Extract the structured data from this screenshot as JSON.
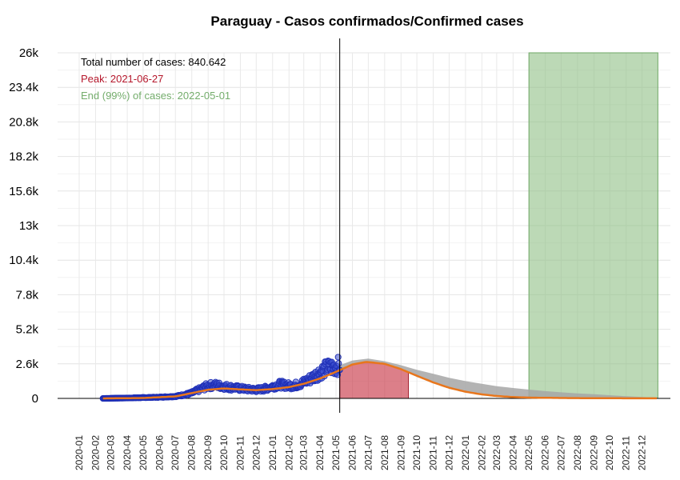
{
  "chart_data": {
    "type": "line",
    "title": "Paraguay - Casos confirmados/Confirmed cases",
    "xlabel": "",
    "ylabel": "",
    "ylim": [
      0,
      26000
    ],
    "y_ticks": [
      0,
      2600,
      5200,
      7800,
      10400,
      13000,
      15600,
      18200,
      20800,
      23400,
      26000
    ],
    "y_tick_labels": [
      "0",
      "2.6k",
      "5.2k",
      "7.8k",
      "10.4k",
      "13k",
      "15.6k",
      "18.2k",
      "20.8k",
      "23.4k",
      "26k"
    ],
    "x_tick_labels": [
      "2020-01",
      "2020-02",
      "2020-03",
      "2020-04",
      "2020-05",
      "2020-06",
      "2020-07",
      "2020-08",
      "2020-09",
      "2020-10",
      "2020-11",
      "2020-12",
      "2021-01",
      "2021-02",
      "2021-03",
      "2021-04",
      "2021-05",
      "2021-06",
      "2021-07",
      "2021-08",
      "2021-09",
      "2021-10",
      "2021-11",
      "2021-12",
      "2022-01",
      "2022-02",
      "2022-03",
      "2022-04",
      "2022-05",
      "2022-06",
      "2022-07",
      "2022-08",
      "2022-09",
      "2022-10",
      "2022-11",
      "2022-12"
    ],
    "grid": true,
    "annotations": {
      "total": "Total number of cases: 840.642",
      "peak": "Peak: 2021-06-27",
      "end": "End (99%) of cases: 2022-05-01"
    },
    "colors": {
      "observed": "#1f2fb5",
      "fit": "#e8761c",
      "peak_area": "#c93a4a",
      "band": "#a6a6a6",
      "end_area": "#8fbf86",
      "peak_text": "#b5172b",
      "end_text": "#74ad6c"
    },
    "current_date_line": "2021-05-08",
    "observed_cases": {
      "x": [
        "2020-02-15",
        "2020-03-01",
        "2020-04-01",
        "2020-05-01",
        "2020-06-01",
        "2020-07-01",
        "2020-07-15",
        "2020-08-01",
        "2020-08-15",
        "2020-09-01",
        "2020-09-15",
        "2020-10-01",
        "2020-10-15",
        "2020-11-01",
        "2020-11-15",
        "2020-12-01",
        "2020-12-15",
        "2021-01-01",
        "2021-01-15",
        "2021-02-01",
        "2021-02-15",
        "2021-03-01",
        "2021-03-15",
        "2021-04-01",
        "2021-04-15",
        "2021-05-01",
        "2021-05-08"
      ],
      "y": [
        0,
        10,
        30,
        60,
        90,
        150,
        250,
        400,
        650,
        950,
        1000,
        900,
        820,
        750,
        680,
        650,
        700,
        900,
        1050,
        950,
        1000,
        1200,
        1500,
        2000,
        2300,
        2400,
        2500
      ]
    },
    "fitted_curve": {
      "x": [
        "2020-02-15",
        "2020-05-01",
        "2020-07-01",
        "2020-08-01",
        "2020-09-01",
        "2020-10-01",
        "2020-11-01",
        "2020-12-01",
        "2021-01-01",
        "2021-02-01",
        "2021-03-01",
        "2021-04-01",
        "2021-05-01",
        "2021-06-01",
        "2021-06-27",
        "2021-08-01",
        "2021-09-01",
        "2021-10-01",
        "2021-11-01",
        "2021-12-01",
        "2022-01-01",
        "2022-02-01",
        "2022-03-01",
        "2022-04-01",
        "2022-05-01",
        "2022-07-01",
        "2022-09-01",
        "2022-11-01",
        "2022-12-31"
      ],
      "y": [
        0,
        30,
        150,
        400,
        650,
        750,
        680,
        620,
        700,
        850,
        1100,
        1500,
        2000,
        2550,
        2750,
        2600,
        2200,
        1700,
        1200,
        800,
        500,
        300,
        180,
        100,
        60,
        30,
        15,
        8,
        5
      ]
    },
    "upper_band": {
      "x": [
        "2021-05-08",
        "2021-06-01",
        "2021-07-01",
        "2021-08-01",
        "2021-09-01",
        "2021-10-01",
        "2021-11-01",
        "2021-12-01",
        "2022-01-01",
        "2022-02-01",
        "2022-03-01",
        "2022-04-01",
        "2022-05-01",
        "2022-06-01",
        "2022-07-01",
        "2022-08-01",
        "2022-09-01",
        "2022-10-01",
        "2022-11-01",
        "2022-12-01",
        "2022-12-31"
      ],
      "y": [
        2500,
        2850,
        3000,
        2800,
        2500,
        2150,
        1850,
        1550,
        1300,
        1100,
        920,
        780,
        660,
        550,
        460,
        380,
        310,
        240,
        170,
        110,
        60
      ]
    },
    "peak_region": {
      "x_start": "2021-05-08",
      "x_end": "2021-09-15"
    },
    "end_region": {
      "x_start": "2022-05-01",
      "x_end": "2022-12-31",
      "y_top": 26000
    }
  }
}
